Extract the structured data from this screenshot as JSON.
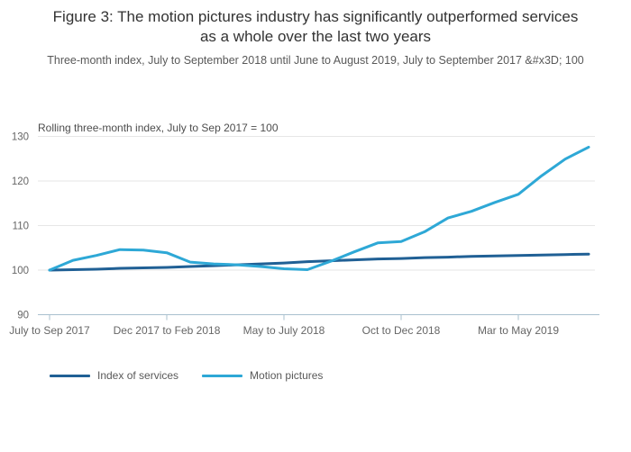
{
  "page": {
    "background": "#ffffff"
  },
  "title": "Figure 3: The motion pictures industry has significantly outperformed services as a whole over the last two years",
  "subtitle": "Three-month index, July to September 2018 until June to August 2019, July to September 2017 &#x3D; 100",
  "colors": {
    "title": "#333333",
    "subtitle": "#595959",
    "gridline": "#e6e6e6",
    "axis_line": "#a9c0cf",
    "tick_label": "#666666",
    "series_dark": "#206095",
    "series_light": "#2EA8D6"
  },
  "legend": {
    "items": [
      {
        "label": "Index of services",
        "color": "#206095"
      },
      {
        "label": "Motion pictures",
        "color": "#2EA8D6"
      }
    ]
  },
  "chart_data": {
    "type": "line",
    "axis_title": "Rolling three-month index, July to Sep 2017 = 100",
    "ylim": [
      90,
      130
    ],
    "y_ticks": [
      90,
      100,
      110,
      120,
      130
    ],
    "x_count": 24,
    "x_tick_positions": [
      0,
      5,
      10,
      15,
      20
    ],
    "x_tick_labels": [
      "July to Sep 2017",
      "Dec 2017 to Feb 2018",
      "May to July 2018",
      "Oct to Dec 2018",
      "Mar to May 2019"
    ],
    "grid": "horizontal",
    "legend_position": "bottom-left",
    "series": [
      {
        "name": "Index of services",
        "color": "#206095",
        "values": [
          100.0,
          100.1,
          100.2,
          100.4,
          100.5,
          100.6,
          100.8,
          101.0,
          101.2,
          101.4,
          101.6,
          101.9,
          102.1,
          102.3,
          102.5,
          102.6,
          102.8,
          102.9,
          103.1,
          103.2,
          103.3,
          103.4,
          103.5,
          103.6
        ]
      },
      {
        "name": "Motion pictures",
        "color": "#2EA8D6",
        "values": [
          100.0,
          102.2,
          103.3,
          104.6,
          104.5,
          103.9,
          101.8,
          101.4,
          101.2,
          100.8,
          100.3,
          100.1,
          102.0,
          104.1,
          106.1,
          106.4,
          108.6,
          111.7,
          113.2,
          115.2,
          117.0,
          121.2,
          124.9,
          127.6
        ]
      }
    ]
  }
}
